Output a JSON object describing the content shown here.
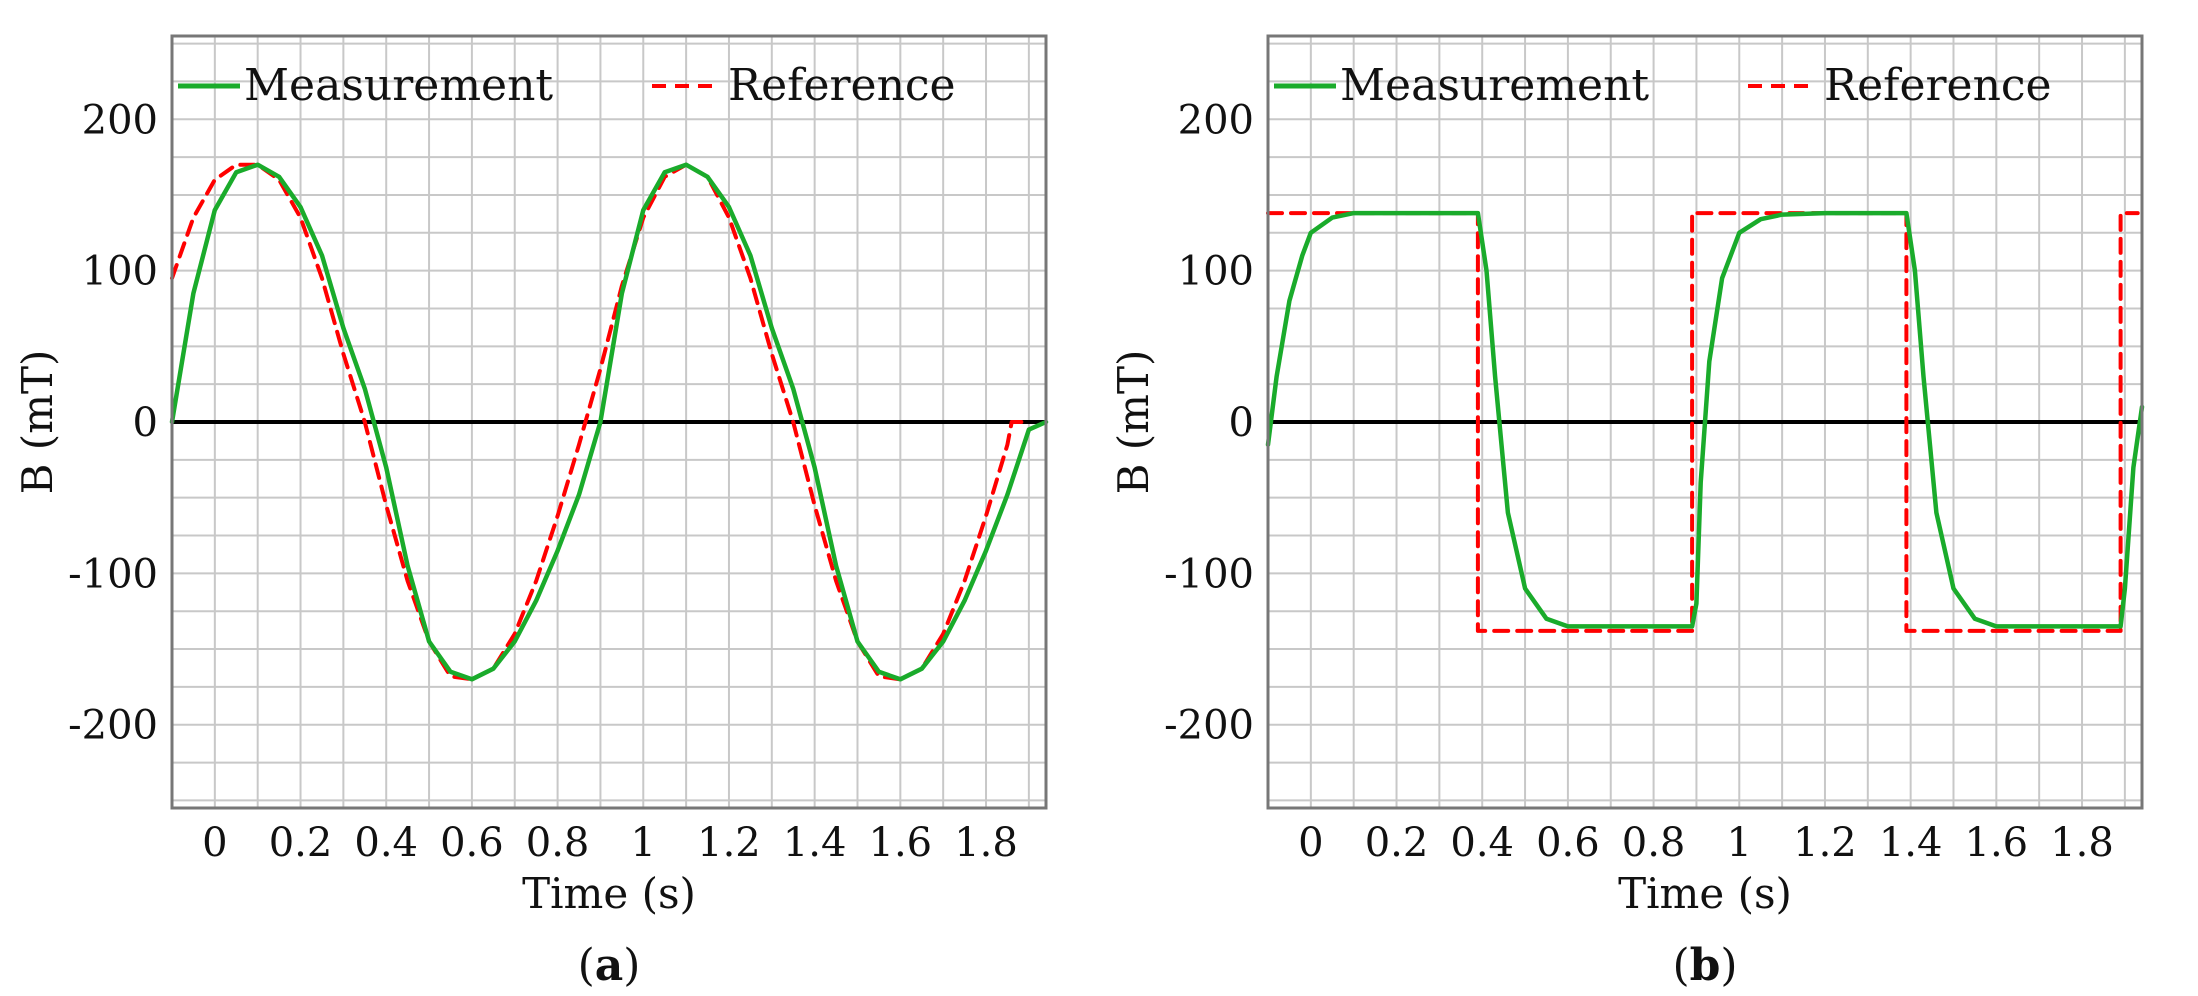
{
  "colors": {
    "measurement": "#1aab2b",
    "reference": "#ff0000",
    "zero_line": "#000000",
    "grid": "#c8c8c8",
    "frame": "#777777"
  },
  "chart_data": [
    {
      "type": "line",
      "panel_label": "a",
      "xlabel": "Time (s)",
      "ylabel": "B (mT)",
      "xlim": [
        -0.1,
        1.94
      ],
      "ylim": [
        -255,
        255
      ],
      "x_ticks": [
        0,
        0.2,
        0.4,
        0.6,
        0.8,
        1,
        1.2,
        1.4,
        1.6,
        1.8
      ],
      "x_tick_labels": [
        "0",
        "0.2",
        "0.4",
        "0.6",
        "0.8",
        "1",
        "1.2",
        "1.4",
        "1.6",
        "1.8"
      ],
      "y_ticks": [
        -200,
        -100,
        0,
        100,
        200
      ],
      "y_tick_labels": [
        "-200",
        "-100",
        "0",
        "100",
        "200"
      ],
      "x_grid_step": 0.1,
      "y_grid_step": 25,
      "zero_line": true,
      "legend": [
        "Measurement",
        "Reference"
      ],
      "series": [
        {
          "name": "Measurement",
          "style": "solid",
          "x": [
            -0.1,
            -0.05,
            0,
            0.05,
            0.1,
            0.15,
            0.2,
            0.25,
            0.3,
            0.35,
            0.4,
            0.45,
            0.5,
            0.55,
            0.6,
            0.65,
            0.7,
            0.75,
            0.8,
            0.85,
            0.9,
            0.95,
            1.0,
            1.05,
            1.1,
            1.15,
            1.2,
            1.25,
            1.3,
            1.35,
            1.4,
            1.45,
            1.5,
            1.55,
            1.6,
            1.65,
            1.7,
            1.75,
            1.8,
            1.85,
            1.9,
            1.94
          ],
          "values": [
            0,
            85,
            140,
            165,
            170,
            162,
            142,
            110,
            62,
            22,
            -30,
            -95,
            -145,
            -165,
            -170,
            -163,
            -145,
            -118,
            -85,
            -48,
            0,
            85,
            140,
            165,
            170,
            162,
            142,
            110,
            62,
            22,
            -30,
            -95,
            -145,
            -165,
            -170,
            -163,
            -145,
            -118,
            -85,
            -48,
            -5,
            0
          ]
        },
        {
          "name": "Reference",
          "style": "dashed",
          "x": [
            -0.1,
            -0.05,
            0,
            0.05,
            0.1,
            0.15,
            0.2,
            0.25,
            0.3,
            0.35,
            0.4,
            0.45,
            0.5,
            0.55,
            0.6,
            0.65,
            0.7,
            0.75,
            0.8,
            0.85,
            0.9,
            0.95,
            1.0,
            1.05,
            1.1,
            1.15,
            1.2,
            1.25,
            1.3,
            1.35,
            1.4,
            1.45,
            1.5,
            1.55,
            1.6,
            1.65,
            1.7,
            1.75,
            1.8,
            1.85,
            1.86,
            1.9
          ],
          "values": [
            95,
            135,
            160,
            170,
            170,
            160,
            135,
            95,
            45,
            0,
            -55,
            -105,
            -145,
            -168,
            -170,
            -163,
            -140,
            -105,
            -62,
            -15,
            35,
            90,
            135,
            162,
            170,
            162,
            135,
            95,
            45,
            0,
            -55,
            -105,
            -145,
            -168,
            -170,
            -163,
            -140,
            -105,
            -62,
            -15,
            0,
            0
          ]
        }
      ]
    },
    {
      "type": "line",
      "panel_label": "b",
      "xlabel": "Time (s)",
      "ylabel": "B (mT)",
      "xlim": [
        -0.1,
        1.94
      ],
      "ylim": [
        -255,
        255
      ],
      "x_ticks": [
        0,
        0.2,
        0.4,
        0.6,
        0.8,
        1,
        1.2,
        1.4,
        1.6,
        1.8
      ],
      "x_tick_labels": [
        "0",
        "0.2",
        "0.4",
        "0.6",
        "0.8",
        "1",
        "1.2",
        "1.4",
        "1.6",
        "1.8"
      ],
      "y_ticks": [
        -200,
        -100,
        0,
        100,
        200
      ],
      "y_tick_labels": [
        "-200",
        "-100",
        "0",
        "100",
        "200"
      ],
      "x_grid_step": 0.1,
      "y_grid_step": 25,
      "zero_line": true,
      "legend": [
        "Measurement",
        "Reference"
      ],
      "series": [
        {
          "name": "Measurement",
          "style": "solid",
          "x": [
            -0.1,
            -0.08,
            -0.05,
            -0.02,
            0,
            0.05,
            0.1,
            0.2,
            0.3,
            0.39,
            0.41,
            0.43,
            0.46,
            0.5,
            0.55,
            0.6,
            0.7,
            0.8,
            0.89,
            0.9,
            0.91,
            0.93,
            0.96,
            1.0,
            1.05,
            1.1,
            1.2,
            1.3,
            1.39,
            1.41,
            1.43,
            1.46,
            1.5,
            1.55,
            1.6,
            1.7,
            1.8,
            1.89,
            1.9,
            1.92,
            1.94
          ],
          "values": [
            -15,
            30,
            80,
            110,
            125,
            135,
            138,
            138,
            138,
            138,
            100,
            30,
            -60,
            -110,
            -130,
            -135,
            -135,
            -135,
            -135,
            -120,
            -40,
            40,
            95,
            125,
            134,
            137,
            138,
            138,
            138,
            100,
            30,
            -60,
            -110,
            -130,
            -135,
            -135,
            -135,
            -135,
            -110,
            -30,
            10
          ]
        },
        {
          "name": "Reference",
          "style": "dashed",
          "x": [
            -0.1,
            0,
            0.2,
            0.39,
            0.39,
            0.6,
            0.8,
            0.89,
            0.89,
            1.1,
            1.3,
            1.39,
            1.39,
            1.6,
            1.8,
            1.89,
            1.89,
            1.93
          ],
          "values": [
            138,
            138,
            138,
            138,
            -138,
            -138,
            -138,
            -138,
            138,
            138,
            138,
            138,
            -138,
            -138,
            -138,
            -138,
            138,
            138
          ]
        }
      ]
    }
  ]
}
